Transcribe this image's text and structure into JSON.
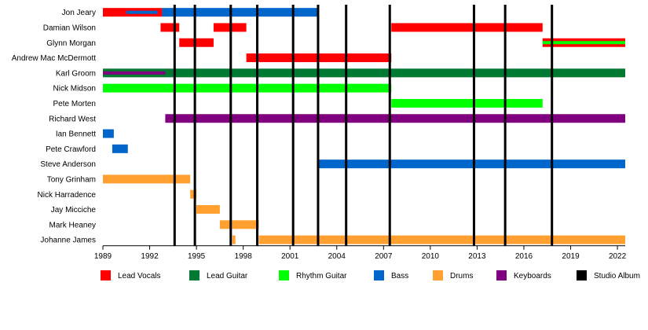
{
  "chart_data": {
    "type": "timeline",
    "title": "",
    "xlim": [
      1989,
      2022.5
    ],
    "x_ticks": [
      1989,
      1992,
      1995,
      1998,
      2001,
      2004,
      2007,
      2010,
      2013,
      2016,
      2019,
      2022
    ],
    "roles": [
      {
        "key": "lead_vocals",
        "name": "Lead Vocals",
        "color": "#ff0000"
      },
      {
        "key": "lead_guitar",
        "name": "Lead Guitar",
        "color": "#007a33"
      },
      {
        "key": "rhythm_guitar",
        "name": "Rhythm Guitar",
        "color": "#00ff00"
      },
      {
        "key": "bass",
        "name": "Bass",
        "color": "#0066cc"
      },
      {
        "key": "drums",
        "name": "Drums",
        "color": "#ffa030"
      },
      {
        "key": "keyboards",
        "name": "Keyboards",
        "color": "#800080"
      },
      {
        "key": "studio_album",
        "name": "Studio Album",
        "color": "#000000"
      }
    ],
    "members": [
      {
        "name": "Jon Jeary",
        "bars": [
          {
            "role": "lead_vocals",
            "start": 1989,
            "end": 1992.8
          },
          {
            "role": "bass",
            "start": 1992.8,
            "end": 2002.8
          },
          {
            "role": "bass",
            "start": 1990.5,
            "end": 1992.5,
            "thin": true
          }
        ]
      },
      {
        "name": "Damian Wilson",
        "bars": [
          {
            "role": "lead_vocals",
            "start": 1992.7,
            "end": 1993.9
          },
          {
            "role": "lead_vocals",
            "start": 1996.1,
            "end": 1998.2
          },
          {
            "role": "lead_vocals",
            "start": 2007.5,
            "end": 2017.2
          }
        ]
      },
      {
        "name": "Glynn Morgan",
        "bars": [
          {
            "role": "lead_vocals",
            "start": 1993.9,
            "end": 1996.1
          },
          {
            "role": "lead_vocals",
            "start": 2017.2,
            "end": 2022.5
          },
          {
            "role": "rhythm_guitar",
            "start": 2017.2,
            "end": 2022.5,
            "thin": true
          }
        ]
      },
      {
        "name": "Andrew Mac McDermott",
        "bars": [
          {
            "role": "lead_vocals",
            "start": 1998.2,
            "end": 2007.5
          }
        ]
      },
      {
        "name": "Karl Groom",
        "bars": [
          {
            "role": "lead_guitar",
            "start": 1989,
            "end": 2022.5
          },
          {
            "role": "keyboards",
            "start": 1989,
            "end": 1993.0,
            "thin": true
          }
        ]
      },
      {
        "name": "Nick Midson",
        "bars": [
          {
            "role": "rhythm_guitar",
            "start": 1989,
            "end": 2007.5
          }
        ]
      },
      {
        "name": "Pete Morten",
        "bars": [
          {
            "role": "rhythm_guitar",
            "start": 2007.5,
            "end": 2017.2
          }
        ]
      },
      {
        "name": "Richard West",
        "bars": [
          {
            "role": "keyboards",
            "start": 1993.0,
            "end": 2022.5
          }
        ]
      },
      {
        "name": "Ian Bennett",
        "bars": [
          {
            "role": "bass",
            "start": 1989,
            "end": 1989.7
          }
        ]
      },
      {
        "name": "Pete Crawford",
        "bars": [
          {
            "role": "bass",
            "start": 1989.6,
            "end": 1990.6
          }
        ]
      },
      {
        "name": "Steve Anderson",
        "bars": [
          {
            "role": "bass",
            "start": 2002.8,
            "end": 2022.5
          }
        ]
      },
      {
        "name": "Tony Grinham",
        "bars": [
          {
            "role": "drums",
            "start": 1989,
            "end": 1994.6
          }
        ]
      },
      {
        "name": "Nick Harradence",
        "bars": [
          {
            "role": "drums",
            "start": 1994.6,
            "end": 1995.0
          }
        ]
      },
      {
        "name": "Jay Micciche",
        "bars": [
          {
            "role": "drums",
            "start": 1995.0,
            "end": 1996.5
          }
        ]
      },
      {
        "name": "Mark Heaney",
        "bars": [
          {
            "role": "drums",
            "start": 1996.5,
            "end": 1997.3
          },
          {
            "role": "drums",
            "start": 1997.3,
            "end": 1999.0
          }
        ]
      },
      {
        "name": "Johanne James",
        "bars": [
          {
            "role": "drums",
            "start": 1997.3,
            "end": 1997.5
          },
          {
            "role": "drums",
            "start": 1999.0,
            "end": 2022.5
          }
        ]
      }
    ],
    "studio_albums": [
      1993.6,
      1994.9,
      1997.2,
      1998.9,
      2001.2,
      2002.8,
      2004.6,
      2007.4,
      2012.8,
      2014.8,
      2017.8
    ],
    "legend_placement": "bottom"
  }
}
